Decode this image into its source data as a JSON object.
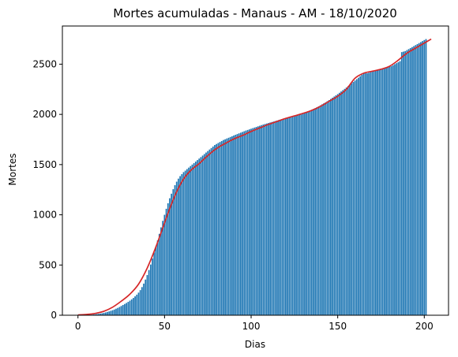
{
  "chart_data": {
    "type": "bar",
    "title": "Mortes acumuladas - Manaus - AM - 18/10/2020",
    "xlabel": "Dias",
    "ylabel": "Mortes",
    "xlim": [
      -9,
      214
    ],
    "ylim": [
      0,
      2880
    ],
    "xticks": [
      0,
      50,
      100,
      150,
      200
    ],
    "yticks": [
      0,
      500,
      1000,
      1500,
      2000,
      2500
    ],
    "grid": false,
    "legend": "none",
    "series": [
      {
        "kind": "bar",
        "color": "#1f77b4",
        "x_start": 0,
        "x_end": 204,
        "values": [
          1,
          1,
          2,
          2,
          3,
          3,
          4,
          5,
          6,
          8,
          10,
          12,
          14,
          17,
          20,
          24,
          28,
          33,
          38,
          44,
          50,
          57,
          65,
          73,
          82,
          92,
          102,
          112,
          122,
          133,
          145,
          158,
          172,
          188,
          205,
          225,
          250,
          280,
          315,
          355,
          400,
          450,
          505,
          565,
          625,
          685,
          745,
          810,
          875,
          940,
          1000,
          1060,
          1115,
          1165,
          1210,
          1255,
          1295,
          1330,
          1360,
          1385,
          1405,
          1425,
          1440,
          1455,
          1470,
          1485,
          1500,
          1515,
          1530,
          1545,
          1560,
          1575,
          1590,
          1605,
          1620,
          1635,
          1650,
          1665,
          1680,
          1695,
          1705,
          1715,
          1725,
          1735,
          1745,
          1752,
          1760,
          1767,
          1775,
          1782,
          1790,
          1797,
          1804,
          1811,
          1818,
          1825,
          1832,
          1839,
          1845,
          1851,
          1857,
          1863,
          1869,
          1875,
          1881,
          1887,
          1893,
          1899,
          1904,
          1909,
          1914,
          1919,
          1924,
          1929,
          1934,
          1939,
          1944,
          1949,
          1954,
          1958,
          1962,
          1966,
          1970,
          1975,
          1980,
          1985,
          1990,
          1995,
          2000,
          2006,
          2012,
          2018,
          2024,
          2031,
          2038,
          2046,
          2054,
          2062,
          2071,
          2080,
          2090,
          2100,
          2110,
          2120,
          2131,
          2142,
          2154,
          2166,
          2178,
          2190,
          2202,
          2215,
          2228,
          2241,
          2254,
          2267,
          2281,
          2295,
          2309,
          2323,
          2337,
          2351,
          2365,
          2380,
          2395,
          2410,
          2410,
          2410,
          2415,
          2420,
          2425,
          2430,
          2435,
          2440,
          2445,
          2450,
          2455,
          2460,
          2465,
          2470,
          2475,
          2480,
          2490,
          2500,
          2510,
          2520,
          2530,
          2620,
          2625,
          2630,
          2640,
          2650,
          2660,
          2670,
          2680,
          2690,
          2700,
          2710,
          2720,
          2730,
          2740,
          2750
        ]
      },
      {
        "kind": "line",
        "color": "#d62728",
        "x": [
          0,
          5,
          10,
          15,
          20,
          25,
          30,
          35,
          40,
          45,
          50,
          55,
          60,
          65,
          70,
          75,
          80,
          85,
          90,
          95,
          100,
          105,
          110,
          115,
          120,
          125,
          130,
          135,
          140,
          145,
          150,
          155,
          160,
          165,
          170,
          175,
          180,
          185,
          190,
          195,
          200,
          204
        ],
        "values": [
          3,
          8,
          18,
          40,
          80,
          140,
          210,
          310,
          470,
          680,
          920,
          1150,
          1330,
          1440,
          1510,
          1590,
          1660,
          1710,
          1755,
          1790,
          1830,
          1865,
          1900,
          1930,
          1960,
          1985,
          2010,
          2040,
          2080,
          2130,
          2180,
          2250,
          2360,
          2410,
          2430,
          2450,
          2480,
          2540,
          2610,
          2660,
          2710,
          2750
        ]
      }
    ]
  }
}
